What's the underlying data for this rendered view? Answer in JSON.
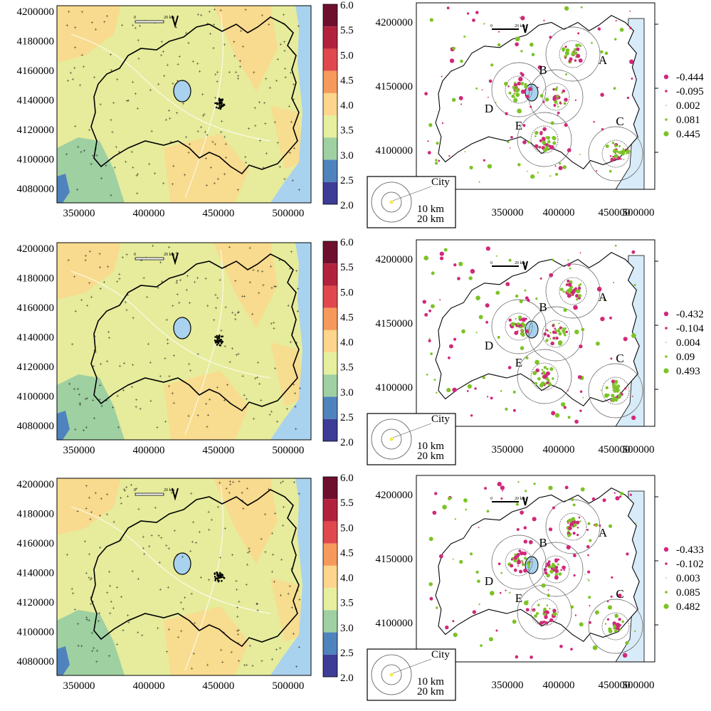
{
  "colorbar": {
    "labels": [
      "6.0",
      "5.5",
      "5.0",
      "4.5",
      "4.0",
      "3.5",
      "3.0",
      "2.5",
      "2.0"
    ],
    "colors": [
      "#6e0f2e",
      "#b2223c",
      "#e0484d",
      "#f59a5b",
      "#fdd58c",
      "#e6ef9e",
      "#9fd0a2",
      "#4f83bd",
      "#3d3d97"
    ]
  },
  "map_axes": {
    "x_ticks": [
      "350000",
      "400000",
      "450000",
      "500000"
    ],
    "y_ticks_left": [
      "4200000",
      "4180000",
      "4160000",
      "4140000",
      "4120000",
      "4100000",
      "4080000"
    ],
    "y_ticks_right": [
      "4200000",
      "4150000",
      "4100000"
    ]
  },
  "scalebar": {
    "zero": "0",
    "distance": "20 km",
    "north": "N"
  },
  "region_labels": [
    "A",
    "B",
    "C",
    "D",
    "E"
  ],
  "inset": {
    "city": "City",
    "r1": "10 km",
    "r2": "20 km"
  },
  "rows": [
    {
      "legend": [
        "-0.444",
        "-0.095",
        "0.002",
        "0.081",
        "0.445"
      ]
    },
    {
      "legend": [
        "-0.432",
        "-0.104",
        "0.004",
        "0.09",
        "0.493"
      ]
    },
    {
      "legend": [
        "-0.433",
        "-0.102",
        "0.003",
        "0.085",
        "0.482"
      ]
    }
  ],
  "colors": {
    "negative": "#d0297a",
    "positive": "#7cc327",
    "sea": "#a9d2ee",
    "lake": "#a9d2ee",
    "land_light": "#e6ec9c",
    "land_orange": "#fad98d",
    "land_green": "#9fd0a2",
    "land_blue": "#4f83bd"
  }
}
